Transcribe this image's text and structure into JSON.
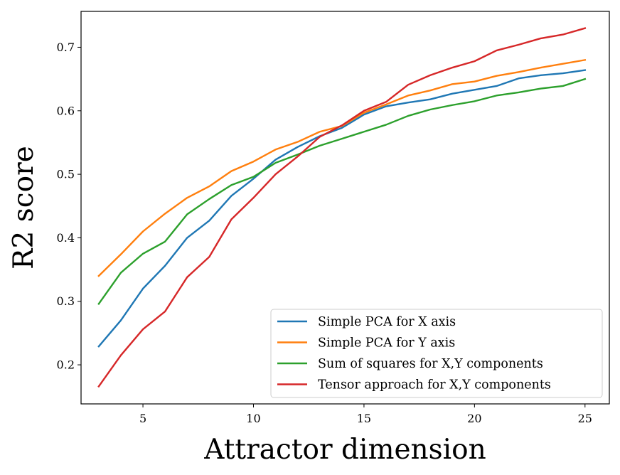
{
  "chart_data": {
    "type": "line",
    "xlabel": "Attractor dimension",
    "ylabel": "R2 score",
    "xlim": [
      2.2,
      26.1
    ],
    "ylim": [
      0.1385,
      0.7565
    ],
    "xticks": [
      5,
      10,
      15,
      20,
      25
    ],
    "yticks": [
      0.2,
      0.3,
      0.4,
      0.5,
      0.6,
      0.7
    ],
    "grid": false,
    "legend_position": "lower-right",
    "x": [
      3,
      4,
      5,
      6,
      7,
      8,
      9,
      10,
      11,
      12,
      13,
      14,
      15,
      16,
      17,
      18,
      19,
      20,
      21,
      22,
      23,
      24,
      25
    ],
    "series": [
      {
        "name": "Simple PCA for X axis",
        "color": "#1f77b4",
        "values": [
          0.229,
          0.27,
          0.32,
          0.356,
          0.4,
          0.427,
          0.466,
          0.493,
          0.523,
          0.543,
          0.56,
          0.573,
          0.594,
          0.607,
          0.613,
          0.618,
          0.627,
          0.633,
          0.639,
          0.651,
          0.656,
          0.659,
          0.664
        ]
      },
      {
        "name": "Simple PCA for Y axis",
        "color": "#ff7f0e",
        "values": [
          0.34,
          0.374,
          0.41,
          0.438,
          0.463,
          0.481,
          0.505,
          0.52,
          0.539,
          0.551,
          0.567,
          0.576,
          0.597,
          0.61,
          0.624,
          0.632,
          0.642,
          0.646,
          0.655,
          0.661,
          0.668,
          0.674,
          0.68
        ]
      },
      {
        "name": "Sum of squares for X,Y components",
        "color": "#2ca02c",
        "values": [
          0.296,
          0.345,
          0.375,
          0.394,
          0.437,
          0.461,
          0.483,
          0.496,
          0.518,
          0.531,
          0.545,
          0.556,
          0.567,
          0.578,
          0.592,
          0.602,
          0.609,
          0.615,
          0.624,
          0.629,
          0.635,
          0.639,
          0.65
        ]
      },
      {
        "name": "Tensor approach for X,Y components",
        "color": "#d62728",
        "values": [
          0.166,
          0.215,
          0.256,
          0.284,
          0.338,
          0.37,
          0.429,
          0.463,
          0.5,
          0.528,
          0.559,
          0.577,
          0.6,
          0.614,
          0.641,
          0.656,
          0.668,
          0.678,
          0.695,
          0.704,
          0.714,
          0.72,
          0.73
        ]
      }
    ]
  }
}
